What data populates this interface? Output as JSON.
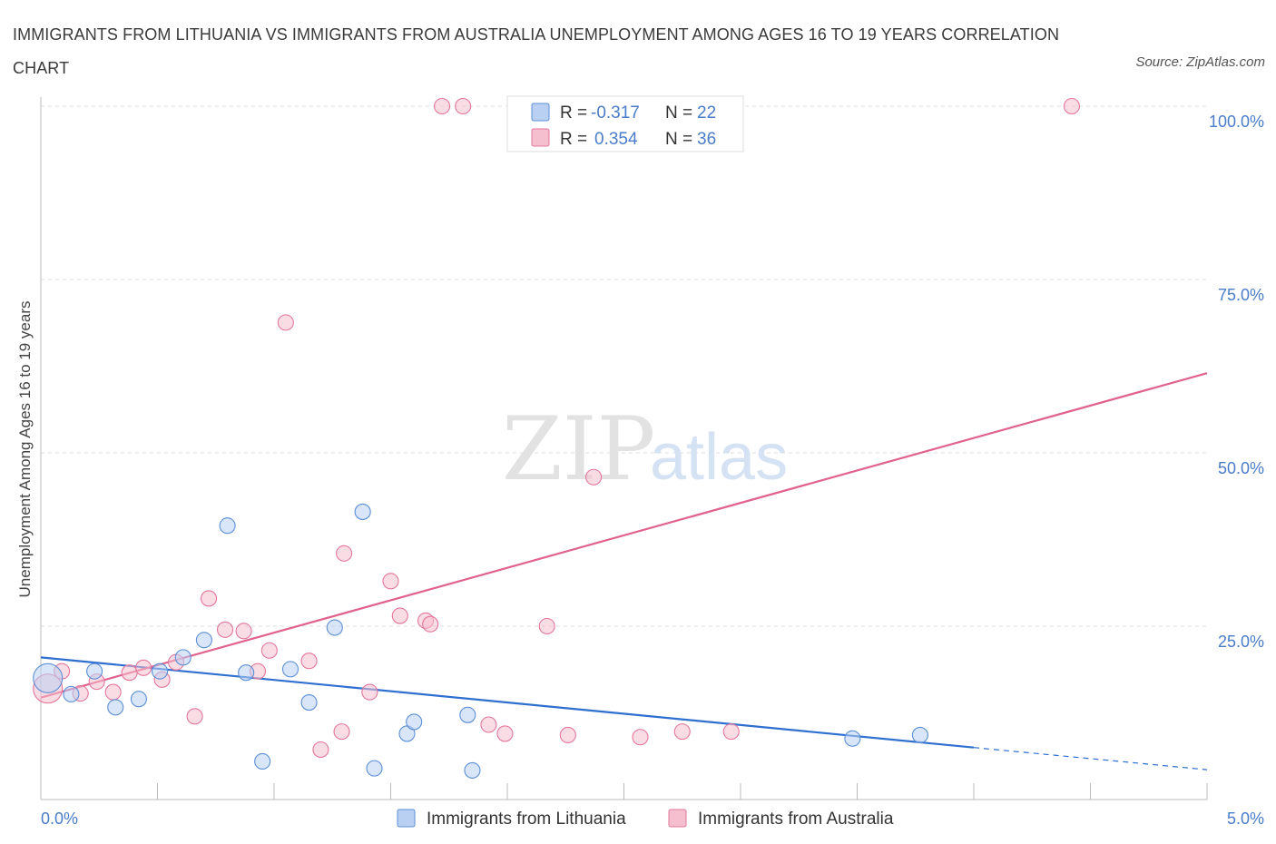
{
  "title": "IMMIGRANTS FROM LITHUANIA VS IMMIGRANTS FROM AUSTRALIA UNEMPLOYMENT AMONG AGES 16 TO 19 YEARS CORRELATION CHART",
  "source": "Source: ZipAtlas.com",
  "watermark": {
    "zip": "ZIP",
    "atlas": "atlas"
  },
  "colors": {
    "lithuania": "#5b8fd6",
    "lithuania_fill": "#b9d0f2",
    "australia": "#e3779c",
    "australia_fill": "#f6bfd0",
    "tick_label": "#4a7cc9",
    "grid": "#dddddd"
  },
  "legend_top": {
    "rows": [
      {
        "r_label": "R = ",
        "r_value": "-0.317",
        "n_label": "N = ",
        "n_value": "22"
      },
      {
        "r_label": "R = ",
        "r_value": "0.354",
        "n_label": "N = ",
        "n_value": "36"
      }
    ]
  },
  "legend_bottom": [
    "Immigrants from Lithuania",
    "Immigrants from Australia"
  ],
  "chart_data": {
    "type": "scatter",
    "title": "IMMIGRANTS FROM LITHUANIA VS IMMIGRANTS FROM AUSTRALIA UNEMPLOYMENT AMONG AGES 16 TO 19 YEARS CORRELATION CHART",
    "xlabel": "",
    "ylabel": "Unemployment Among Ages 16 to 19 years",
    "xlim": [
      0,
      5
    ],
    "ylim": [
      0,
      100
    ],
    "x_tick_labels": [
      "0.0%",
      "5.0%"
    ],
    "y_tick_labels": [
      "100.0%",
      "75.0%",
      "50.0%",
      "25.0%"
    ],
    "y_ticks": [
      100,
      75,
      50,
      25
    ],
    "grid": true,
    "legend": "top-center",
    "series": [
      {
        "name": "Immigrants from Lithuania",
        "r": -0.317,
        "n": 22,
        "trend": {
          "x": [
            0,
            4
          ],
          "y": [
            20.5,
            7.5
          ],
          "dashed_to": [
            5,
            4.3
          ]
        },
        "points": [
          {
            "x": 0.03,
            "y": 17.5,
            "big": true
          },
          {
            "x": 0.13,
            "y": 15.2
          },
          {
            "x": 0.23,
            "y": 18.5
          },
          {
            "x": 0.32,
            "y": 13.3
          },
          {
            "x": 0.42,
            "y": 14.5
          },
          {
            "x": 0.51,
            "y": 18.5
          },
          {
            "x": 0.61,
            "y": 20.5
          },
          {
            "x": 0.7,
            "y": 23.0
          },
          {
            "x": 0.8,
            "y": 39.5
          },
          {
            "x": 0.88,
            "y": 18.3
          },
          {
            "x": 0.95,
            "y": 5.5
          },
          {
            "x": 1.07,
            "y": 18.8
          },
          {
            "x": 1.15,
            "y": 14.0
          },
          {
            "x": 1.26,
            "y": 24.8
          },
          {
            "x": 1.38,
            "y": 41.5
          },
          {
            "x": 1.43,
            "y": 4.5
          },
          {
            "x": 1.57,
            "y": 9.5
          },
          {
            "x": 1.6,
            "y": 11.2
          },
          {
            "x": 1.83,
            "y": 12.2
          },
          {
            "x": 1.85,
            "y": 4.2
          },
          {
            "x": 3.48,
            "y": 8.8
          },
          {
            "x": 3.77,
            "y": 9.3
          }
        ]
      },
      {
        "name": "Immigrants from Australia",
        "r": 0.354,
        "n": 36,
        "trend": {
          "x": [
            0,
            5
          ],
          "y": [
            14.7,
            61.5
          ]
        },
        "points": [
          {
            "x": 0.03,
            "y": 16.0,
            "big": true
          },
          {
            "x": 0.09,
            "y": 18.5
          },
          {
            "x": 0.17,
            "y": 15.3
          },
          {
            "x": 0.24,
            "y": 17.0
          },
          {
            "x": 0.31,
            "y": 15.5
          },
          {
            "x": 0.38,
            "y": 18.3
          },
          {
            "x": 0.44,
            "y": 19.0
          },
          {
            "x": 0.52,
            "y": 17.3
          },
          {
            "x": 0.58,
            "y": 19.8
          },
          {
            "x": 0.66,
            "y": 12.0
          },
          {
            "x": 0.72,
            "y": 29.0
          },
          {
            "x": 0.79,
            "y": 24.5
          },
          {
            "x": 0.87,
            "y": 24.3
          },
          {
            "x": 0.93,
            "y": 18.5
          },
          {
            "x": 0.98,
            "y": 21.5
          },
          {
            "x": 1.05,
            "y": 68.8
          },
          {
            "x": 1.15,
            "y": 20.0
          },
          {
            "x": 1.2,
            "y": 7.2
          },
          {
            "x": 1.3,
            "y": 35.5
          },
          {
            "x": 1.29,
            "y": 9.8
          },
          {
            "x": 1.41,
            "y": 15.5
          },
          {
            "x": 1.5,
            "y": 31.5
          },
          {
            "x": 1.54,
            "y": 26.5
          },
          {
            "x": 1.65,
            "y": 25.8
          },
          {
            "x": 1.67,
            "y": 25.3
          },
          {
            "x": 1.72,
            "y": 100
          },
          {
            "x": 1.81,
            "y": 100
          },
          {
            "x": 1.92,
            "y": 10.8
          },
          {
            "x": 1.99,
            "y": 9.5
          },
          {
            "x": 2.17,
            "y": 25.0
          },
          {
            "x": 2.26,
            "y": 9.3
          },
          {
            "x": 2.37,
            "y": 46.5
          },
          {
            "x": 2.57,
            "y": 9.0
          },
          {
            "x": 2.75,
            "y": 9.8
          },
          {
            "x": 2.96,
            "y": 9.8
          },
          {
            "x": 4.42,
            "y": 100
          }
        ]
      }
    ]
  }
}
